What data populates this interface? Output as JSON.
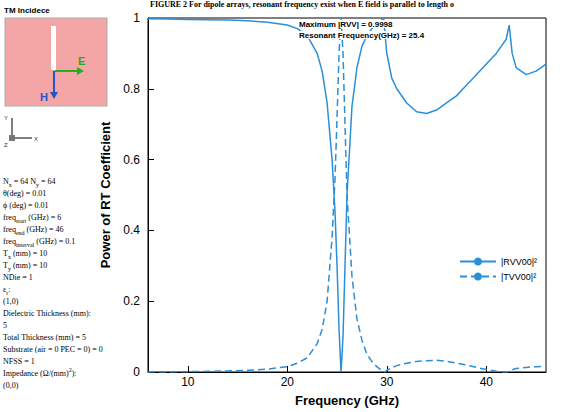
{
  "caption": "FIGURE 2 For dipole arrays, resonant frequency exist when E field is parallel to length o",
  "inset": {
    "title": "TM Incidece",
    "field_labels": {
      "E": "E",
      "H": "H"
    },
    "axis_labels": {
      "x": "X",
      "y": "Y",
      "z": "Z"
    }
  },
  "parameters": [
    [
      "N",
      {
        "sub": "x"
      },
      " = 64 N",
      {
        "sub": "y"
      },
      " = 64"
    ],
    [
      "θ(deg) = 0.01"
    ],
    [
      "ϕ (deg) = 0.01"
    ],
    [
      "freq",
      {
        "sub": "start"
      },
      " (GHz) = 6"
    ],
    [
      "freq",
      {
        "sub": "end"
      },
      " (GHz) = 46"
    ],
    [
      "freq",
      {
        "sub": "interval"
      },
      " (GHz) = 0.1"
    ],
    [
      "T",
      {
        "sub": "x"
      },
      " (mm) = 10"
    ],
    [
      "T",
      {
        "sub": "y"
      },
      " (mm) = 10"
    ],
    [
      "NDie = 1"
    ],
    [
      "ε",
      {
        "sub": "r"
      },
      ":"
    ],
    [
      "(1,0)"
    ],
    [
      "Dielectric Thickness (mm):"
    ],
    [
      "5"
    ],
    [
      "Total Thickness (mm) = 5"
    ],
    [
      "Substrate (air = 0 PEC = 0) = 0"
    ],
    [
      "NFSS = 1"
    ],
    [
      "Impedance (Ω/(mm)",
      {
        "sup": "2"
      },
      "):"
    ],
    [
      "(0,0)"
    ]
  ],
  "chart_data": {
    "type": "line",
    "xlabel": "Frequency (GHz)",
    "ylabel": "Power of RT Coefficient",
    "annotations": [
      "Maximum |RVV| = 0.9998",
      "Resonant Frequency(GHz) = 25.4"
    ],
    "x": [
      6,
      8,
      10,
      12,
      14,
      16,
      18,
      20,
      21,
      22,
      23,
      23.5,
      24,
      24.5,
      24.8,
      25,
      25.2,
      25.4,
      25.6,
      25.8,
      26,
      26.5,
      27,
      27.5,
      28,
      28.5,
      29,
      29.5,
      29.7,
      29.8,
      30,
      30.5,
      31,
      32,
      33,
      34,
      35,
      36,
      37,
      38,
      39,
      40,
      41,
      41.5,
      42,
      42.3,
      42.6,
      43,
      44,
      45,
      46
    ],
    "series": [
      {
        "name": "|RVV00|²",
        "color": "#2b8fd8",
        "line_style": "solid",
        "values": [
          0.998,
          0.997,
          0.996,
          0.995,
          0.994,
          0.992,
          0.988,
          0.98,
          0.97,
          0.95,
          0.9,
          0.85,
          0.76,
          0.6,
          0.45,
          0.3,
          0.12,
          0.0,
          0.1,
          0.3,
          0.5,
          0.75,
          0.86,
          0.92,
          0.95,
          0.97,
          0.985,
          0.995,
          0.998,
          0.96,
          0.9,
          0.83,
          0.8,
          0.76,
          0.735,
          0.73,
          0.74,
          0.76,
          0.78,
          0.81,
          0.84,
          0.87,
          0.9,
          0.92,
          0.94,
          0.98,
          0.9,
          0.86,
          0.84,
          0.85,
          0.87
        ]
      },
      {
        "name": "|TVV00|²",
        "color": "#2b8fd8",
        "line_style": "dashed",
        "values": [
          0.0,
          0.0,
          0.001,
          0.002,
          0.003,
          0.005,
          0.008,
          0.015,
          0.025,
          0.04,
          0.08,
          0.12,
          0.2,
          0.38,
          0.55,
          0.72,
          0.9,
          1.0,
          0.9,
          0.7,
          0.5,
          0.27,
          0.15,
          0.09,
          0.05,
          0.03,
          0.015,
          0.004,
          0.001,
          0.0,
          0.005,
          0.012,
          0.018,
          0.025,
          0.03,
          0.032,
          0.033,
          0.03,
          0.025,
          0.02,
          0.013,
          0.007,
          0.002,
          0.001,
          0.0,
          0.002,
          0.006,
          0.01,
          0.013,
          0.015,
          0.016
        ]
      }
    ],
    "xlim": [
      6,
      46
    ],
    "xticks": [
      10,
      20,
      30,
      40
    ],
    "ylim": [
      0,
      1
    ],
    "yticks": [
      0,
      0.2,
      0.4,
      0.6,
      0.8,
      1
    ],
    "grid": false,
    "legend": "right",
    "marker": "none"
  }
}
